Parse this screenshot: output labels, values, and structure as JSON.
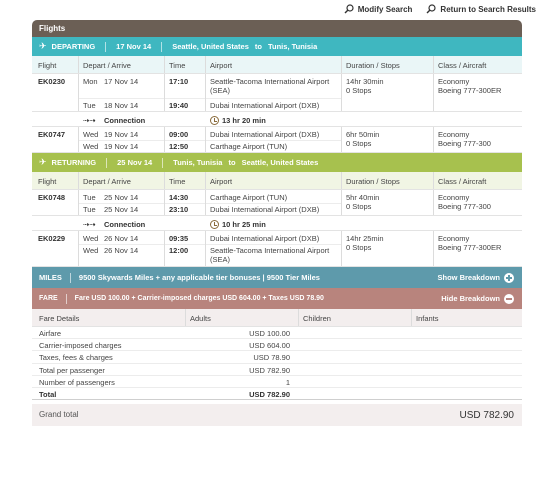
{
  "top_links": {
    "modify": "Modify Search",
    "return": "Return to Search Results"
  },
  "flights_title": "Flights",
  "columns": {
    "flight": "Flight",
    "depart_arrive": "Depart / Arrive",
    "time": "Time",
    "airport": "Airport",
    "duration": "Duration / Stops",
    "class": "Class / Aircraft"
  },
  "departing": {
    "label": "DEPARTING",
    "date": "17 Nov 14",
    "from": "Seattle, United States",
    "to_word": "to",
    "to": "Tunis, Tunisia",
    "segments": [
      {
        "flight": "EK0230",
        "dep_day": "Mon",
        "dep_date": "17 Nov 14",
        "dep_time": "17:10",
        "dep_airport": "Seattle-Tacoma International Airport",
        "dep_airport2": "(SEA)",
        "arr_day": "Tue",
        "arr_date": "18 Nov 14",
        "arr_time": "19:40",
        "arr_airport": "Dubai International Airport (DXB)",
        "duration": "14hr 30min",
        "stops": "0 Stops",
        "class": "Economy",
        "aircraft": "Boeing 777-300ER"
      },
      {
        "flight": "EK0747",
        "dep_day": "Wed",
        "dep_date": "19 Nov 14",
        "dep_time": "09:00",
        "dep_airport": "Dubai International Airport (DXB)",
        "arr_day": "Wed",
        "arr_date": "19 Nov 14",
        "arr_time": "12:50",
        "arr_airport": "Carthage Airport (TUN)",
        "duration": "6hr 50min",
        "stops": "0 Stops",
        "class": "Economy",
        "aircraft": "Boeing 777-300"
      }
    ],
    "connection": {
      "label": "Connection",
      "time": "13 hr 20 min"
    }
  },
  "returning": {
    "label": "RETURNING",
    "date": "25 Nov 14",
    "from": "Tunis, Tunisia",
    "to_word": "to",
    "to": "Seattle, United States",
    "segments": [
      {
        "flight": "EK0748",
        "dep_day": "Tue",
        "dep_date": "25 Nov 14",
        "dep_time": "14:30",
        "dep_airport": "Carthage Airport (TUN)",
        "arr_day": "Tue",
        "arr_date": "25 Nov 14",
        "arr_time": "23:10",
        "arr_airport": "Dubai International Airport (DXB)",
        "duration": "5hr 40min",
        "stops": "0 Stops",
        "class": "Economy",
        "aircraft": "Boeing 777-300"
      },
      {
        "flight": "EK0229",
        "dep_day": "Wed",
        "dep_date": "26 Nov 14",
        "dep_time": "09:35",
        "dep_airport": "Dubai International Airport (DXB)",
        "arr_day": "Wed",
        "arr_date": "26 Nov 14",
        "arr_time": "12:00",
        "arr_airport": "Seattle-Tacoma International Airport",
        "arr_airport2": "(SEA)",
        "duration": "14hr 25min",
        "stops": "0 Stops",
        "class": "Economy",
        "aircraft": "Boeing 777-300ER"
      }
    ],
    "connection": {
      "label": "Connection",
      "time": "10 hr 25 min"
    }
  },
  "miles": {
    "label": "MILES",
    "text": "9500 Skywards Miles + any applicable tier bonuses | 9500 Tier Miles",
    "link": "Show Breakdown"
  },
  "fare": {
    "label": "FARE",
    "text": "Fare USD 100.00 + Carrier-imposed charges USD 604.00 + Taxes USD 78.90",
    "link": "Hide Breakdown"
  },
  "fare_table": {
    "headers": {
      "details": "Fare Details",
      "adults": "Adults",
      "children": "Children",
      "infants": "Infants"
    },
    "rows": [
      {
        "label": "Airfare",
        "adults": "USD 100.00"
      },
      {
        "label": "Carrier-imposed charges",
        "adults": "USD 604.00"
      },
      {
        "label": "Taxes, fees & charges",
        "adults": "USD 78.90"
      },
      {
        "label": "Total per passenger",
        "adults": "USD 782.90"
      },
      {
        "label": "Number of passengers",
        "adults": "1"
      },
      {
        "label": "Total",
        "adults": "USD 782.90"
      }
    ]
  },
  "grand_total": {
    "label": "Grand total",
    "amount": "USD 782.90"
  },
  "colors": {
    "departing": "#3fb7c0",
    "returning": "#a7c14e",
    "miles": "#5e9aab",
    "fare": "#b8847d",
    "header": "#6b5f55"
  },
  "icons": {
    "search": "magnifier-icon",
    "plane": "plane-icon",
    "connection": "connection-icon",
    "clock": "clock-icon"
  }
}
